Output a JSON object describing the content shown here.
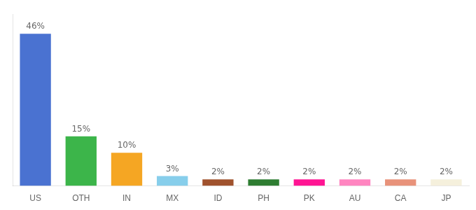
{
  "chart_data": {
    "type": "bar",
    "categories": [
      "US",
      "OTH",
      "IN",
      "MX",
      "ID",
      "PH",
      "PK",
      "AU",
      "CA",
      "JP"
    ],
    "values": [
      46,
      15,
      10,
      3,
      2,
      2,
      2,
      2,
      2,
      2
    ],
    "value_labels": [
      "46%",
      "15%",
      "10%",
      "3%",
      "2%",
      "2%",
      "2%",
      "2%",
      "2%",
      "2%"
    ],
    "colors": [
      "#4a72d1",
      "#3cb54a",
      "#f5a623",
      "#87ceeb",
      "#a0522d",
      "#2e7d32",
      "#ff1493",
      "#ff85c0",
      "#e8927a",
      "#f5f0dc"
    ],
    "ylim": [
      0,
      52
    ],
    "data_labels": true,
    "tick_labels": "x",
    "grid": false
  }
}
